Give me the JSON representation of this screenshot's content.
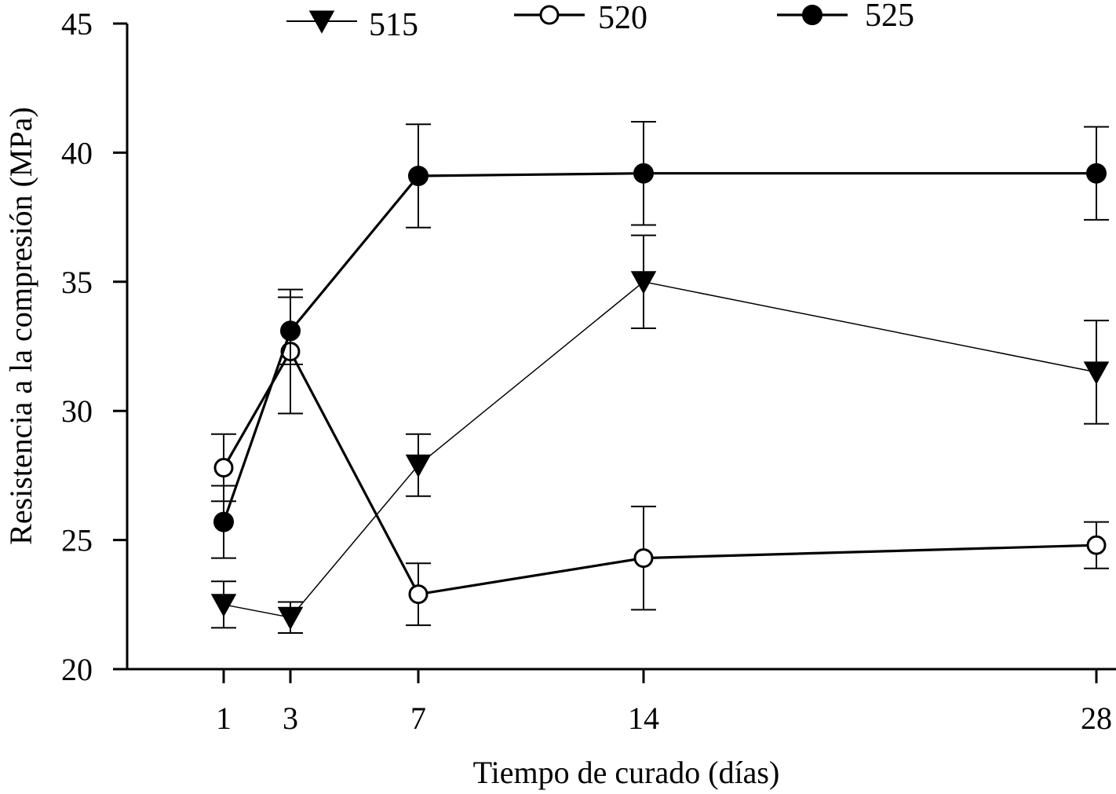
{
  "chart_data": {
    "type": "line",
    "xlabel": "Tiempo de curado (días)",
    "ylabel": "Resistencia a la compresión (MPa)",
    "x": [
      1,
      3,
      7,
      14,
      28
    ],
    "x_tick_labels": [
      "1",
      "3",
      "7",
      "14",
      "28"
    ],
    "ylim": [
      20,
      45
    ],
    "y_ticks": [
      20,
      25,
      30,
      35,
      40,
      45
    ],
    "y_tick_labels": [
      "20",
      "25",
      "30",
      "35",
      "40",
      "45"
    ],
    "grid": false,
    "legend_position": "top",
    "series": [
      {
        "name": "515",
        "marker": "triangle-down-filled",
        "line": "thin",
        "values": [
          22.5,
          22.0,
          27.9,
          35.0,
          31.5
        ],
        "errors": [
          0.9,
          0.6,
          1.2,
          1.8,
          2.0
        ]
      },
      {
        "name": "520",
        "marker": "circle-open",
        "line": "thick",
        "values": [
          27.8,
          32.3,
          22.9,
          24.3,
          24.8
        ],
        "errors": [
          1.3,
          2.4,
          1.2,
          2.0,
          0.9
        ]
      },
      {
        "name": "525",
        "marker": "circle-filled",
        "line": "thick",
        "values": [
          25.7,
          33.1,
          39.1,
          39.2,
          39.2
        ],
        "errors": [
          1.4,
          1.3,
          2.0,
          2.0,
          1.8
        ]
      }
    ]
  }
}
